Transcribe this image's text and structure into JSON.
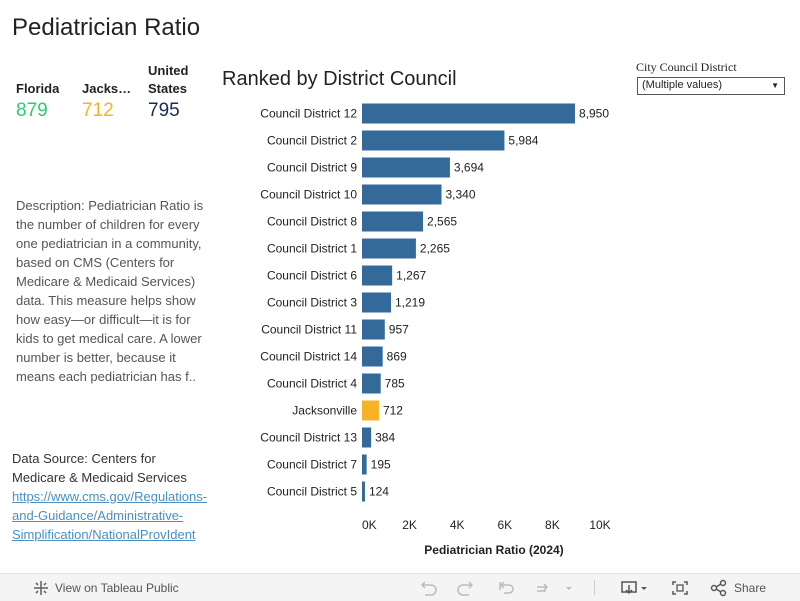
{
  "page_title": "Pediatrician Ratio",
  "kpis": [
    {
      "label": "Florida",
      "value": "879",
      "color": "#2ecc71"
    },
    {
      "label": "Jackson..",
      "value": "712",
      "color": "#f5b325"
    },
    {
      "label_line1": "United",
      "label_line2": "States",
      "value": "795",
      "color": "#1a2b5c"
    }
  ],
  "description": "Description:  Pediatrician Ratio is the number of children for every one pediatrician in a community, based on CMS (Centers for Medicare & Medicaid Services) data. This measure helps show how easy—or difficult—it is for kids to get medical care. A lower number is better, because it means each pediatrician has f..",
  "source": {
    "label": "Data Source: Centers for Medicare & Medicaid Services",
    "link_lines": [
      "https://www.cms.gov/Regulations-",
      "and-Guidance/Administrative-",
      "Simplification/NationalProvIdent"
    ]
  },
  "filter": {
    "label": "City Council District",
    "value": "(Multiple values)"
  },
  "toolbar": {
    "view_label": "View on Tableau Public",
    "share_label": "Share"
  },
  "chart_data": {
    "type": "bar",
    "orientation": "horizontal",
    "title": "Ranked by District Council",
    "xlabel": "Pediatrician Ratio (2024)",
    "xlim": [
      0,
      10000
    ],
    "ticks": [
      0,
      2000,
      4000,
      6000,
      8000,
      10000
    ],
    "tick_labels": [
      "0K",
      "2K",
      "4K",
      "6K",
      "8K",
      "10K"
    ],
    "bar_color": "#336a9a",
    "highlight_color": "#f5b325",
    "highlight_category": "Jacksonville",
    "categories": [
      "Council District 12",
      "Council District 2",
      "Council District 9",
      "Council District 10",
      "Council District 8",
      "Council District 1",
      "Council District 6",
      "Council District 3",
      "Council District 11",
      "Council District 14",
      "Council District 4",
      "Jacksonville",
      "Council District 13",
      "Council District 7",
      "Council District 5"
    ],
    "values": [
      8950,
      5984,
      3694,
      3340,
      2565,
      2265,
      1267,
      1219,
      957,
      869,
      785,
      712,
      384,
      195,
      124
    ],
    "value_labels": [
      "8,950",
      "5,984",
      "3,694",
      "3,340",
      "2,565",
      "2,265",
      "1,267",
      "1,219",
      "957",
      "869",
      "785",
      "712",
      "384",
      "195",
      "124"
    ]
  }
}
